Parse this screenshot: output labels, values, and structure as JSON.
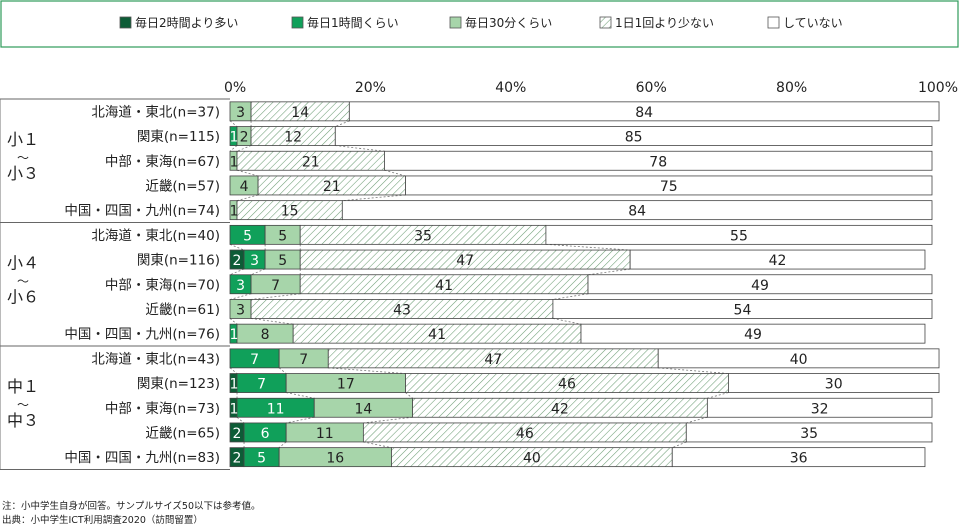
{
  "chart_data": {
    "type": "bar",
    "orientation": "horizontal",
    "stacked": true,
    "percent_scale": true,
    "xlim": [
      0,
      100
    ],
    "x_ticks": [
      "0%",
      "20%",
      "40%",
      "60%",
      "80%",
      "100%"
    ],
    "legend_position": "top",
    "legend": [
      {
        "label": "毎日2時間より多い",
        "color": "#0d5c36",
        "pattern": "solid"
      },
      {
        "label": "毎日1時間くらい",
        "color": "#10a05a",
        "pattern": "solid"
      },
      {
        "label": "毎日30分くらい",
        "color": "#a7d5aa",
        "pattern": "solid"
      },
      {
        "label": "1日1回より少ない",
        "color": "#ffffff",
        "pattern": "hatch"
      },
      {
        "label": "していない",
        "color": "#ffffff",
        "pattern": "solid"
      }
    ],
    "groups": [
      {
        "label_chars": [
          "小１",
          "〜",
          "小３"
        ],
        "rows": [
          {
            "label": "北海道・東北(n=37)",
            "values": [
              0,
              0,
              3,
              14,
              84
            ],
            "labels": [
              "",
              "",
              "3",
              "14",
              "84"
            ]
          },
          {
            "label": "関東(n=115)",
            "values": [
              0,
              1,
              2,
              12,
              85
            ],
            "labels": [
              "",
              "1",
              "2",
              "12",
              "85"
            ]
          },
          {
            "label": "中部・東海(n=67)",
            "values": [
              0,
              0,
              1,
              21,
              78
            ],
            "labels": [
              "",
              "",
              "1",
              "21",
              "78"
            ]
          },
          {
            "label": "近畿(n=57)",
            "values": [
              0,
              0,
              4,
              21,
              75
            ],
            "labels": [
              "",
              "",
              "4",
              "21",
              "75"
            ]
          },
          {
            "label": "中国・四国・九州(n=74)",
            "values": [
              0,
              0,
              1,
              15,
              84
            ],
            "labels": [
              "",
              "",
              "1",
              "15",
              "84"
            ]
          }
        ]
      },
      {
        "label_chars": [
          "小４",
          "〜",
          "小６"
        ],
        "rows": [
          {
            "label": "北海道・東北(n=40)",
            "values": [
              0,
              5,
              5,
              35,
              55
            ],
            "labels": [
              "",
              "5",
              "5",
              "35",
              "55"
            ]
          },
          {
            "label": "関東(n=116)",
            "values": [
              2,
              3,
              5,
              47,
              42
            ],
            "labels": [
              "2",
              "3",
              "5",
              "47",
              "42"
            ]
          },
          {
            "label": "中部・東海(n=70)",
            "values": [
              0,
              3,
              7,
              41,
              49
            ],
            "labels": [
              "",
              "3",
              "7",
              "41",
              "49"
            ]
          },
          {
            "label": "近畿(n=61)",
            "values": [
              0,
              0,
              3,
              43,
              54
            ],
            "labels": [
              "",
              "",
              "3",
              "43",
              "54"
            ]
          },
          {
            "label": "中国・四国・九州(n=76)",
            "values": [
              0,
              1,
              8,
              41,
              49
            ],
            "labels": [
              "",
              "1",
              "8",
              "41",
              "49"
            ]
          }
        ]
      },
      {
        "label_chars": [
          "中１",
          "〜",
          "中３"
        ],
        "rows": [
          {
            "label": "北海道・東北(n=43)",
            "values": [
              0,
              7,
              7,
              47,
              40
            ],
            "labels": [
              "",
              "7",
              "7",
              "47",
              "40"
            ]
          },
          {
            "label": "関東(n=123)",
            "values": [
              1,
              7,
              17,
              46,
              30
            ],
            "labels": [
              "1",
              "7",
              "17",
              "46",
              "30"
            ]
          },
          {
            "label": "中部・東海(n=73)",
            "values": [
              1,
              11,
              14,
              42,
              32
            ],
            "labels": [
              "1",
              "11",
              "14",
              "42",
              "32"
            ]
          },
          {
            "label": "近畿(n=65)",
            "values": [
              2,
              6,
              11,
              46,
              35
            ],
            "labels": [
              "2",
              "6",
              "11",
              "46",
              "35"
            ]
          },
          {
            "label": "中国・四国・九州(n=83)",
            "values": [
              2,
              5,
              16,
              40,
              36
            ],
            "labels": [
              "2",
              "5",
              "16",
              "40",
              "36"
            ]
          }
        ]
      }
    ]
  },
  "notes": {
    "note": "注：小中学生自身が回答。サンプルサイズ50以下は参考値。",
    "source": "出典：小中学生ICT利用調査2020（訪問留置）"
  }
}
